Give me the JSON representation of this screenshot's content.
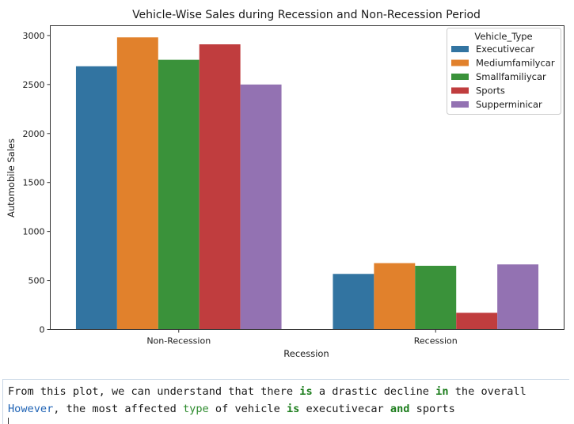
{
  "chart_data": {
    "type": "bar",
    "title": "Vehicle-Wise Sales during Recession and Non-Recession Period",
    "xlabel": "Recession",
    "ylabel": "Automobile Sales",
    "categories": [
      "Non-Recession",
      "Recession"
    ],
    "ylim": [
      0,
      3100
    ],
    "yticks": [
      0,
      500,
      1000,
      1500,
      2000,
      2500,
      3000
    ],
    "grid": false,
    "legend": {
      "title": "Vehicle_Type",
      "position": "top-right"
    },
    "series": [
      {
        "name": "Executivecar",
        "color": "#3274a1",
        "values": [
          2686,
          567
        ]
      },
      {
        "name": "Mediumfamilycar",
        "color": "#e1812c",
        "values": [
          2981,
          677
        ]
      },
      {
        "name": "Smallfamiliycar",
        "color": "#3a923a",
        "values": [
          2752,
          650
        ]
      },
      {
        "name": "Sports",
        "color": "#c03d3e",
        "values": [
          2910,
          170
        ]
      },
      {
        "name": "Supperminicar",
        "color": "#9372b2",
        "values": [
          2500,
          664
        ]
      }
    ]
  },
  "notes": {
    "line1": [
      {
        "t": "From this plot, we can understand that there ",
        "c": ""
      },
      {
        "t": "is",
        "c": "kw"
      },
      {
        "t": " a drastic decline ",
        "c": ""
      },
      {
        "t": "in",
        "c": "kw"
      },
      {
        "t": " the overall",
        "c": ""
      }
    ],
    "line2": [
      {
        "t": "However",
        "c": "bi"
      },
      {
        "t": ", the most affected ",
        "c": ""
      },
      {
        "t": "type",
        "c": "kg"
      },
      {
        "t": " of vehicle ",
        "c": ""
      },
      {
        "t": "is",
        "c": "kw"
      },
      {
        "t": " executivecar ",
        "c": ""
      },
      {
        "t": "and",
        "c": "kw"
      },
      {
        "t": " sports",
        "c": ""
      }
    ]
  }
}
